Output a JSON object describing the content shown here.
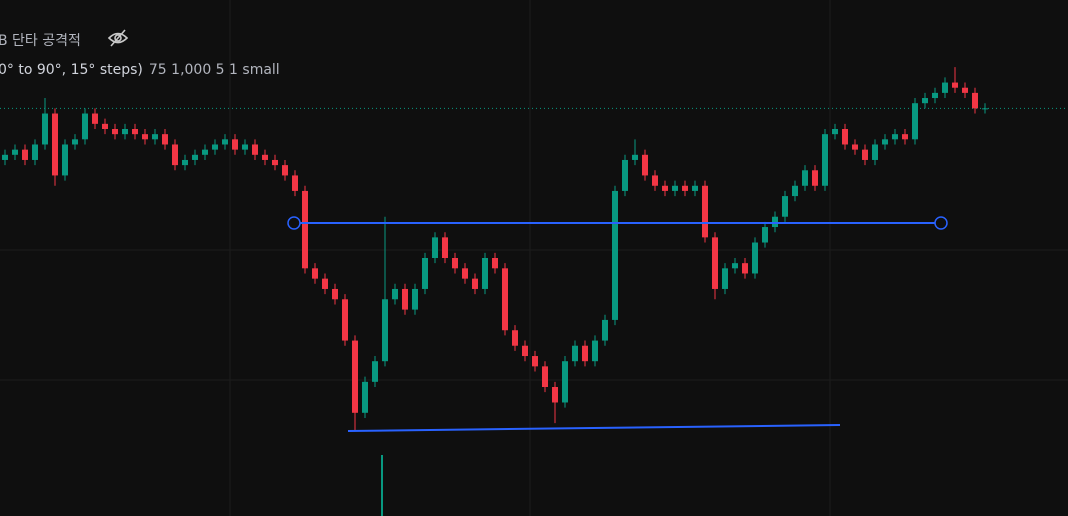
{
  "chart_data": {
    "type": "candlestick",
    "title": "B 단타 공격적",
    "subtitle": "0° to 90°, 15° steps)",
    "inputs": "75 1,000 5 1 small",
    "up_color": "#089981",
    "down_color": "#f23645",
    "ylim": [
      0,
      100
    ],
    "open": [
      69,
      70,
      71,
      69,
      72,
      78,
      66,
      72,
      73,
      78,
      76,
      75,
      74,
      75,
      74,
      73,
      74,
      72,
      68,
      69,
      70,
      71,
      72,
      73,
      71,
      72,
      70,
      69,
      68,
      66,
      63,
      48,
      46,
      44,
      42,
      34,
      20,
      26,
      30,
      42,
      44,
      40,
      44,
      50,
      54,
      50,
      48,
      46,
      44,
      50,
      48,
      36,
      33,
      31,
      29,
      25,
      22,
      30,
      33,
      30,
      34,
      38,
      63,
      69,
      70,
      66,
      64,
      63,
      64,
      63,
      64,
      54,
      44,
      48,
      49,
      47,
      53,
      56,
      58,
      62,
      64,
      67,
      64,
      74,
      75,
      72,
      71,
      69,
      72,
      73,
      74,
      73,
      80,
      81,
      82,
      84,
      83,
      82,
      79
    ],
    "high": [
      71,
      72,
      72,
      73,
      81,
      79,
      73,
      74,
      79,
      79,
      77,
      76,
      76,
      76,
      75,
      75,
      75,
      73,
      70,
      71,
      72,
      73,
      74,
      74,
      73,
      73,
      71,
      70,
      69,
      67,
      64,
      49,
      47,
      45,
      43,
      35,
      27,
      31,
      58,
      45,
      45,
      45,
      51,
      55,
      55,
      51,
      49,
      47,
      51,
      51,
      49,
      37,
      34,
      32,
      30,
      26,
      31,
      34,
      34,
      35,
      39,
      64,
      70,
      73,
      71,
      67,
      65,
      65,
      65,
      65,
      65,
      55,
      49,
      50,
      50,
      54,
      57,
      59,
      63,
      65,
      68,
      68,
      75,
      76,
      76,
      73,
      72,
      73,
      74,
      75,
      75,
      81,
      82,
      83,
      85,
      87,
      84,
      83,
      80
    ],
    "low": [
      68,
      69,
      68,
      68,
      71,
      64,
      65,
      71,
      72,
      75,
      74,
      73,
      73,
      73,
      72,
      72,
      71,
      67,
      67,
      68,
      69,
      70,
      71,
      70,
      70,
      69,
      68,
      67,
      65,
      62,
      47,
      45,
      43,
      41,
      33,
      16.5,
      19,
      25,
      29,
      41,
      39,
      39,
      43,
      49,
      49,
      47,
      45,
      43,
      43,
      47,
      35,
      32,
      30,
      28,
      24,
      18,
      21,
      29,
      29,
      29,
      33,
      37,
      62,
      68,
      65,
      63,
      62,
      62,
      62,
      62,
      53,
      42,
      43,
      47,
      46,
      46,
      52,
      55,
      57,
      61,
      63,
      63,
      63,
      73,
      71,
      70,
      68,
      68,
      71,
      72,
      72,
      72,
      79,
      80,
      81,
      82,
      81,
      78,
      78
    ],
    "close": [
      70,
      71,
      69,
      72,
      78,
      66,
      72,
      73,
      78,
      76,
      75,
      74,
      75,
      74,
      73,
      74,
      72,
      68,
      69,
      70,
      71,
      72,
      73,
      71,
      72,
      70,
      69,
      68,
      66,
      63,
      48,
      46,
      44,
      42,
      34,
      20,
      26,
      30,
      42,
      44,
      40,
      44,
      50,
      54,
      50,
      48,
      46,
      44,
      50,
      48,
      36,
      33,
      31,
      29,
      25,
      22,
      30,
      33,
      30,
      34,
      38,
      63,
      69,
      70,
      66,
      64,
      63,
      64,
      63,
      64,
      54,
      44,
      48,
      49,
      47,
      53,
      56,
      58,
      62,
      64,
      67,
      64,
      74,
      75,
      72,
      71,
      69,
      72,
      73,
      74,
      73,
      80,
      81,
      82,
      84,
      83,
      82,
      79,
      79
    ]
  }
}
